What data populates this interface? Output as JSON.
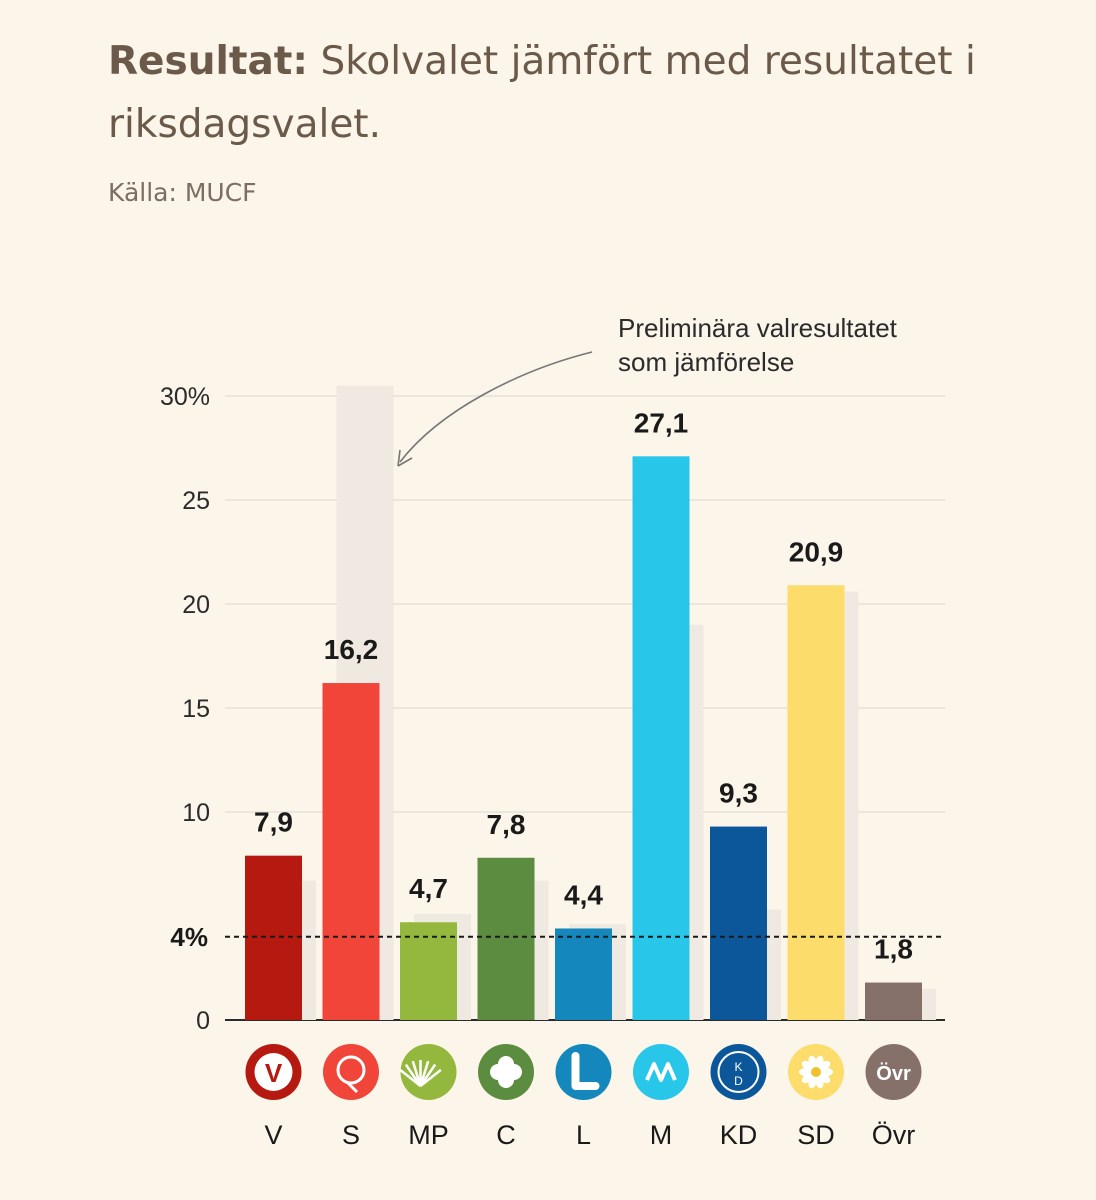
{
  "header": {
    "title_bold": "Resultat:",
    "title_rest": "Skolvalet jämfört med resultatet i riksdagsvalet.",
    "source": "Källa: MUCF"
  },
  "chart_data": {
    "type": "bar",
    "categories": [
      "V",
      "S",
      "MP",
      "C",
      "L",
      "M",
      "KD",
      "SD",
      "Övr"
    ],
    "series": [
      {
        "name": "Skolvalet",
        "values": [
          7.9,
          16.2,
          4.7,
          7.8,
          4.4,
          27.1,
          9.3,
          20.9,
          1.8
        ],
        "value_labels": [
          "7,9",
          "16,2",
          "4,7",
          "7,8",
          "4,4",
          "27,1",
          "9,3",
          "20,9",
          "1,8"
        ],
        "colors": [
          "#b5190f",
          "#f2453a",
          "#94b83d",
          "#5c8c3f",
          "#1488bd",
          "#28c6e8",
          "#0b5799",
          "#fcdc6a",
          "#86716a"
        ]
      },
      {
        "name": "Preliminära valresultatet",
        "values": [
          6.7,
          30.5,
          5.1,
          6.7,
          4.6,
          19.0,
          5.3,
          20.6,
          1.5
        ],
        "color": "#efe9e1"
      }
    ],
    "y_ticks": [
      {
        "value": 0,
        "label": "0"
      },
      {
        "value": 10,
        "label": "10"
      },
      {
        "value": 15,
        "label": "15"
      },
      {
        "value": 20,
        "label": "20"
      },
      {
        "value": 25,
        "label": "25"
      },
      {
        "value": 30,
        "label": "30%"
      }
    ],
    "threshold": {
      "value": 4,
      "label": "4%"
    },
    "annotation": "Preliminära valresultatet som jämförelse",
    "ylim": [
      0,
      30
    ],
    "grid": true,
    "party_icons": [
      "v-logo-icon",
      "s-rose-icon",
      "mp-dandelion-icon",
      "c-clover-icon",
      "l-logo-icon",
      "m-logo-icon",
      "kd-logo-icon",
      "sd-flower-icon",
      "ovr-icon"
    ],
    "ovr_icon_text": "Övr",
    "kd_icon_text": "KD"
  }
}
